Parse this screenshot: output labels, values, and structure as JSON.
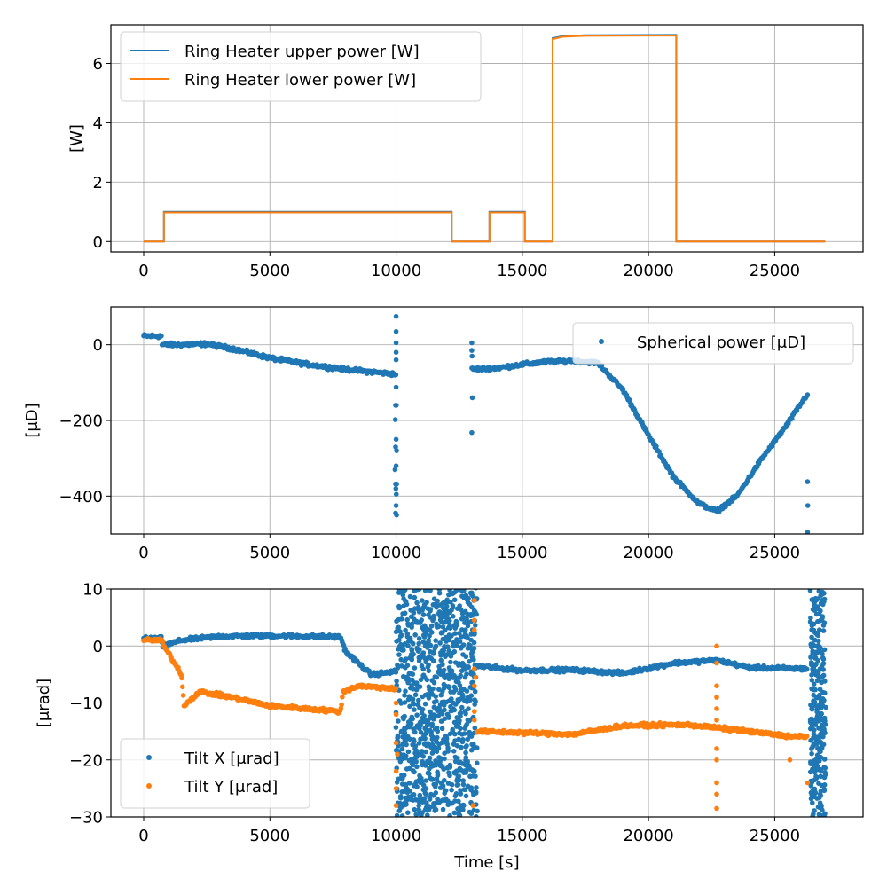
{
  "chart_data": [
    {
      "type": "line",
      "ylabel": "[W]",
      "xlabel": "",
      "xlim": [
        -1300,
        28500
      ],
      "ylim": [
        -0.35,
        7.3
      ],
      "xticks": [
        0,
        5000,
        10000,
        15000,
        20000,
        25000
      ],
      "xtick_labels": [
        "0",
        "5000",
        "10000",
        "15000",
        "20000",
        "25000"
      ],
      "yticks": [
        0,
        2,
        4,
        6
      ],
      "ytick_labels": [
        "0",
        "2",
        "4",
        "6"
      ],
      "grid": true,
      "legend": "top-left",
      "series": [
        {
          "name": "Ring Heater upper power [W]",
          "color": "#1f77b4",
          "points": [
            [
              0,
              0
            ],
            [
              800,
              0
            ],
            [
              800,
              1
            ],
            [
              12200,
              1
            ],
            [
              12200,
              0
            ],
            [
              13700,
              0
            ],
            [
              13700,
              1
            ],
            [
              15100,
              1
            ],
            [
              15100,
              0
            ],
            [
              16200,
              0
            ],
            [
              16200,
              6.85
            ],
            [
              16600,
              6.92
            ],
            [
              17500,
              6.95
            ],
            [
              21100,
              6.96
            ],
            [
              21100,
              0
            ],
            [
              27000,
              0
            ]
          ]
        },
        {
          "name": "Ring Heater lower power [W]",
          "color": "#ff7f0e",
          "points": [
            [
              0,
              0
            ],
            [
              800,
              0
            ],
            [
              800,
              0.98
            ],
            [
              12200,
              0.98
            ],
            [
              12200,
              0
            ],
            [
              13700,
              0
            ],
            [
              13700,
              0.98
            ],
            [
              15100,
              0.98
            ],
            [
              15100,
              0
            ],
            [
              16200,
              0
            ],
            [
              16200,
              6.82
            ],
            [
              16600,
              6.9
            ],
            [
              17500,
              6.93
            ],
            [
              21100,
              6.94
            ],
            [
              21100,
              0
            ],
            [
              27000,
              0
            ]
          ]
        }
      ]
    },
    {
      "type": "scatter",
      "ylabel": "[μD]",
      "xlabel": "",
      "xlim": [
        -1300,
        28500
      ],
      "ylim": [
        -500,
        100
      ],
      "xticks": [
        0,
        5000,
        10000,
        15000,
        20000,
        25000
      ],
      "xtick_labels": [
        "0",
        "5000",
        "10000",
        "15000",
        "20000",
        "25000"
      ],
      "yticks": [
        0,
        -200,
        -400
      ],
      "ytick_labels": [
        "0",
        "−200",
        "−400"
      ],
      "grid": true,
      "legend": "top-right",
      "series": [
        {
          "name": "Spherical power [μD]",
          "color": "#1f77b4",
          "trend": [
            [
              0,
              23
            ],
            [
              700,
              23
            ],
            [
              720,
              0
            ],
            [
              1500,
              0
            ],
            [
              2500,
              2
            ],
            [
              3500,
              -10
            ],
            [
              5000,
              -35
            ],
            [
              6500,
              -52
            ],
            [
              8000,
              -65
            ],
            [
              10000,
              -78
            ]
          ],
          "trend2": [
            [
              13000,
              -65
            ],
            [
              14000,
              -62
            ],
            [
              15000,
              -52
            ],
            [
              16000,
              -45
            ],
            [
              17000,
              -42
            ],
            [
              18000,
              -48
            ],
            [
              19000,
              -120
            ],
            [
              20000,
              -240
            ],
            [
              21000,
              -350
            ],
            [
              22000,
              -420
            ],
            [
              22700,
              -440
            ],
            [
              23500,
              -400
            ],
            [
              24500,
              -300
            ],
            [
              25500,
              -210
            ],
            [
              26300,
              -130
            ]
          ],
          "outliers": [
            [
              10000,
              75
            ],
            [
              10000,
              35
            ],
            [
              10000,
              5
            ],
            [
              10000,
              -20
            ],
            [
              10000,
              -40
            ],
            [
              10000,
              -112
            ],
            [
              9980,
              -160
            ],
            [
              10010,
              -160
            ],
            [
              9970,
              -198
            ],
            [
              10000,
              -250
            ],
            [
              9980,
              -270
            ],
            [
              10020,
              -280
            ],
            [
              10000,
              -320
            ],
            [
              9960,
              -330
            ],
            [
              9980,
              -368
            ],
            [
              10020,
              -368
            ],
            [
              9990,
              -380
            ],
            [
              10010,
              -395
            ],
            [
              10000,
              -425
            ],
            [
              9980,
              -445
            ],
            [
              10020,
              -450
            ],
            [
              13000,
              5
            ],
            [
              13000,
              -15
            ],
            [
              13010,
              -30
            ],
            [
              13020,
              -140
            ],
            [
              13000,
              -232
            ],
            [
              26300,
              -362
            ],
            [
              26310,
              -425
            ],
            [
              26300,
              -495
            ]
          ]
        }
      ]
    },
    {
      "type": "scatter",
      "ylabel": "[μrad]",
      "xlabel": "Time [s]",
      "xlim": [
        -1300,
        28500
      ],
      "ylim": [
        -30,
        10
      ],
      "xticks": [
        0,
        5000,
        10000,
        15000,
        20000,
        25000
      ],
      "xtick_labels": [
        "0",
        "5000",
        "10000",
        "15000",
        "20000",
        "25000"
      ],
      "yticks": [
        10,
        0,
        -10,
        -20,
        -30
      ],
      "ytick_labels": [
        "10",
        "0",
        "−10",
        "−20",
        "−30"
      ],
      "grid": true,
      "legend": "bottom-left",
      "series": [
        {
          "name": "Tilt X [μrad]",
          "color": "#1f77b4",
          "trend": [
            [
              0,
              1.3
            ],
            [
              700,
              1.3
            ],
            [
              750,
              0
            ],
            [
              1500,
              1
            ],
            [
              3000,
              1.7
            ],
            [
              5000,
              1.8
            ],
            [
              7800,
              1.6
            ],
            [
              8000,
              -1
            ],
            [
              8500,
              -3
            ],
            [
              9000,
              -5
            ],
            [
              10000,
              -4.5
            ]
          ],
          "noisy": [
            [
              10000,
              13200
            ],
            [
              26400,
              27000
            ]
          ],
          "trend2": [
            [
              13200,
              -3.5
            ],
            [
              15000,
              -4.3
            ],
            [
              17000,
              -4.2
            ],
            [
              19000,
              -4.8
            ],
            [
              21000,
              -3
            ],
            [
              22700,
              -2.5
            ],
            [
              24000,
              -3.8
            ],
            [
              26300,
              -4
            ]
          ]
        },
        {
          "name": "Tilt Y [μrad]",
          "color": "#ff7f0e",
          "trend": [
            [
              0,
              1
            ],
            [
              700,
              1
            ],
            [
              800,
              0
            ],
            [
              1500,
              -5
            ],
            [
              1600,
              -10.5
            ],
            [
              2200,
              -8
            ],
            [
              3500,
              -9
            ],
            [
              5000,
              -10.5
            ],
            [
              7800,
              -11.5
            ],
            [
              7900,
              -8
            ],
            [
              8500,
              -7
            ],
            [
              10000,
              -7.5
            ]
          ],
          "trend2": [
            [
              13200,
              -15
            ],
            [
              15000,
              -15.2
            ],
            [
              17000,
              -15.5
            ],
            [
              19000,
              -14
            ],
            [
              21500,
              -13.8
            ],
            [
              23000,
              -14.5
            ],
            [
              25500,
              -15.8
            ],
            [
              26300,
              -16
            ]
          ],
          "outliers": [
            [
              10000,
              -10
            ],
            [
              10000,
              -12
            ],
            [
              10000,
              -17
            ],
            [
              10050,
              -19
            ],
            [
              10000,
              -22
            ],
            [
              10000,
              -25
            ],
            [
              10000,
              -28
            ],
            [
              13100,
              8
            ],
            [
              13100,
              4.5
            ],
            [
              13100,
              2.8
            ],
            [
              13100,
              -4
            ],
            [
              13150,
              -5.5
            ],
            [
              13100,
              -7
            ],
            [
              13100,
              -11.5
            ],
            [
              13100,
              -13
            ],
            [
              13050,
              -28
            ],
            [
              22700,
              0
            ],
            [
              22700,
              -3
            ],
            [
              22700,
              -7
            ],
            [
              22700,
              -9
            ],
            [
              22700,
              -11
            ],
            [
              22700,
              -13
            ],
            [
              22700,
              -18
            ],
            [
              22700,
              -20
            ],
            [
              22700,
              -24
            ],
            [
              22700,
              -26
            ],
            [
              22700,
              -28.5
            ],
            [
              25600,
              -20
            ],
            [
              26300,
              -24
            ]
          ]
        }
      ]
    }
  ]
}
